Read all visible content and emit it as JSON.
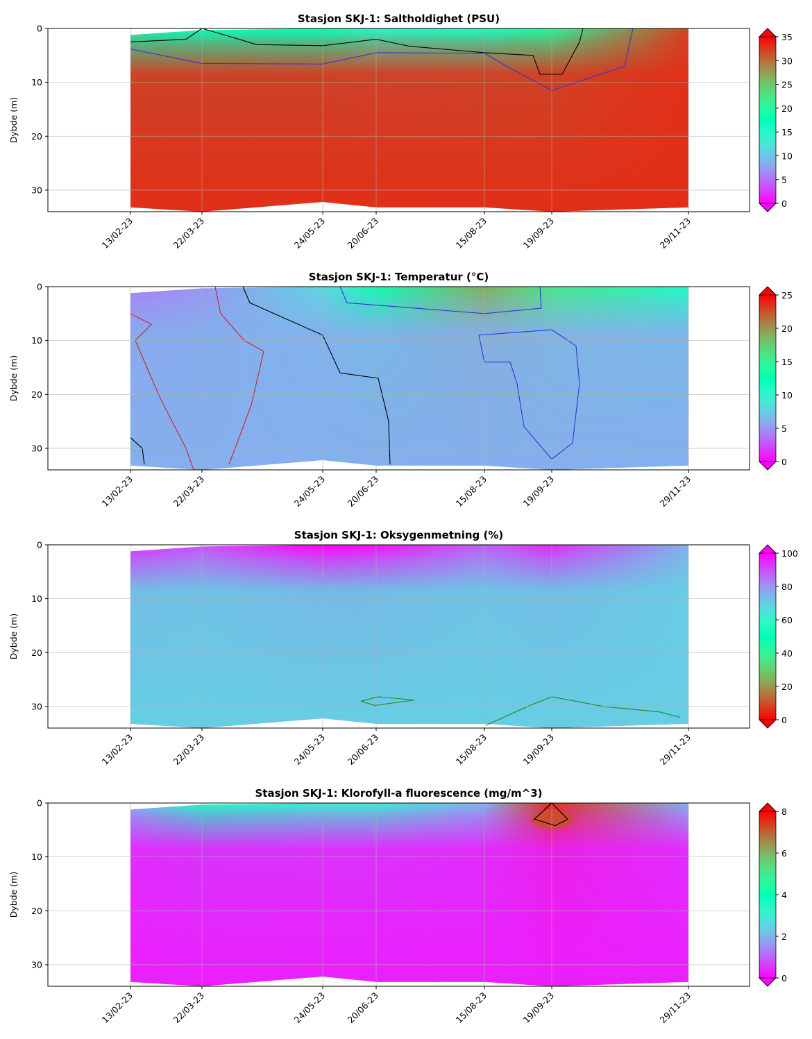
{
  "chart_data": [
    {
      "type": "heatmap",
      "title": "Stasjon SKJ-1: Saltholdighet (PSU)",
      "ylabel": "Dybde (m)",
      "xlabel": "",
      "x_dates": [
        "13/02-23",
        "22/03-23",
        "24/05-23",
        "20/06-23",
        "15/08-23",
        "19/09-23",
        "29/11-23"
      ],
      "y_ticks": [
        0,
        10,
        20,
        30
      ],
      "ylim": [
        34,
        0
      ],
      "colorbar": {
        "ticks": [
          0,
          5,
          10,
          15,
          20,
          25,
          30,
          35
        ],
        "range": [
          0,
          35
        ],
        "colormap": "rainbow"
      },
      "contours": [
        {
          "level": "black",
          "depths": [
            2.5,
            2,
            1,
            1,
            0,
            3,
            3.5,
            3,
            5.5,
            8.5,
            2.5,
            2.5,
            2
          ]
        },
        {
          "level": "blue",
          "depths": [
            3.8,
            6.5,
            6.5,
            4.5,
            4.5,
            11.5,
            0
          ]
        }
      ],
      "surface_values": [
        17,
        17,
        17,
        15,
        16,
        20,
        32
      ],
      "grid": true
    },
    {
      "type": "heatmap",
      "title": "Stasjon SKJ-1: Temperatur (°C)",
      "ylabel": "Dybde (m)",
      "xlabel": "",
      "x_dates": [
        "13/02-23",
        "22/03-23",
        "24/05-23",
        "20/06-23",
        "15/08-23",
        "19/09-23",
        "29/11-23"
      ],
      "y_ticks": [
        0,
        10,
        20,
        30
      ],
      "ylim": [
        34,
        0
      ],
      "colorbar": {
        "ticks": [
          0,
          5,
          10,
          15,
          20,
          25
        ],
        "range": [
          0,
          25
        ],
        "colormap": "rainbow"
      },
      "surface_values": [
        4,
        5,
        8,
        13,
        19,
        16,
        11
      ],
      "grid": true
    },
    {
      "type": "heatmap",
      "title": "Stasjon SKJ-1: Oksygenmetning (%)",
      "ylabel": "Dybde (m)",
      "xlabel": "",
      "x_dates": [
        "13/02-23",
        "22/03-23",
        "24/05-23",
        "20/06-23",
        "15/08-23",
        "19/09-23",
        "29/11-23"
      ],
      "y_ticks": [
        0,
        10,
        20,
        30
      ],
      "ylim": [
        34,
        0
      ],
      "colorbar": {
        "ticks": [
          0,
          20,
          40,
          60,
          80,
          100
        ],
        "range": [
          0,
          100
        ],
        "colormap": "rainbow_r"
      },
      "surface_values": [
        95,
        90,
        100,
        98,
        88,
        95,
        75
      ],
      "grid": true
    },
    {
      "type": "heatmap",
      "title": "Stasjon SKJ-1: Klorofyll-a fluorescence (mg/m^3)",
      "ylabel": "Dybde (m)",
      "xlabel": "",
      "x_dates": [
        "13/02-23",
        "22/03-23",
        "24/05-23",
        "20/06-23",
        "15/08-23",
        "19/09-23",
        "29/11-23"
      ],
      "y_ticks": [
        0,
        10,
        20,
        30
      ],
      "ylim": [
        34,
        0
      ],
      "colorbar": {
        "ticks": [
          0,
          2,
          4,
          6,
          8
        ],
        "range": [
          0,
          8
        ],
        "colormap": "rainbow"
      },
      "surface_values": [
        2,
        3.5,
        3,
        3,
        2,
        7.5,
        2
      ],
      "grid": true
    }
  ]
}
